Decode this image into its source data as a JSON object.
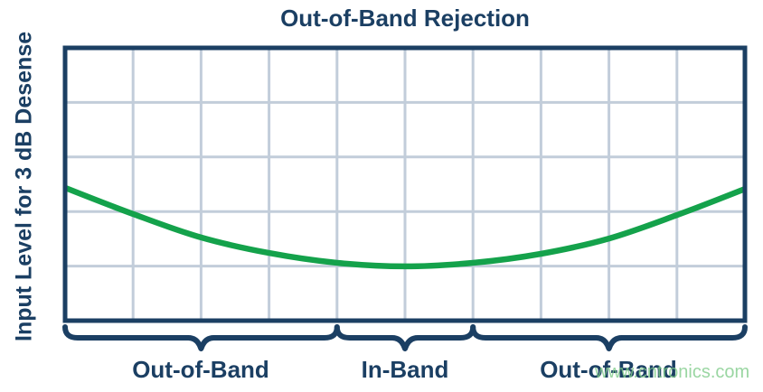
{
  "figure": {
    "title": "Out-of-Band Rejection",
    "y_axis_label": "Input Level for 3 dB Desense",
    "watermark": "www.cntronics.com"
  },
  "colors": {
    "navy": "#1B3F63",
    "curve_green": "#14A24B",
    "gridline": "#C2CDDA",
    "watermark_green": "#82CD8C",
    "background": "#FFFFFF"
  },
  "chart_data": {
    "type": "line",
    "title": "Out-of-Band Rejection",
    "xlabel": "",
    "ylabel": "Input Level for 3 dB Desense",
    "grid": true,
    "legend": false,
    "x_axis": {
      "gridline_columns": 10,
      "tick_labels": []
    },
    "y_axis": {
      "gridline_rows": 5,
      "tick_labels": []
    },
    "series": [
      {
        "name": "Input level for 3 dB desense",
        "color": "#14A24B",
        "description": "Bathtub-shaped curve: highest input level tolerated at band edges (out-of-band), minimum in-band",
        "x_norm": [
          0,
          0.1,
          0.2,
          0.3,
          0.4,
          0.5,
          0.6,
          0.7,
          0.8,
          0.9,
          1.0
        ],
        "y_norm_from_top": [
          0.513,
          0.609,
          0.695,
          0.752,
          0.788,
          0.801,
          0.788,
          0.755,
          0.699,
          0.613,
          0.517
        ]
      }
    ],
    "regions": [
      {
        "label": "Out-of-Band",
        "x_start_norm": 0.0,
        "x_end_norm": 0.4
      },
      {
        "label": "In-Band",
        "x_start_norm": 0.4,
        "x_end_norm": 0.6
      },
      {
        "label": "Out-of-Band",
        "x_start_norm": 0.6,
        "x_end_norm": 1.0
      }
    ]
  }
}
